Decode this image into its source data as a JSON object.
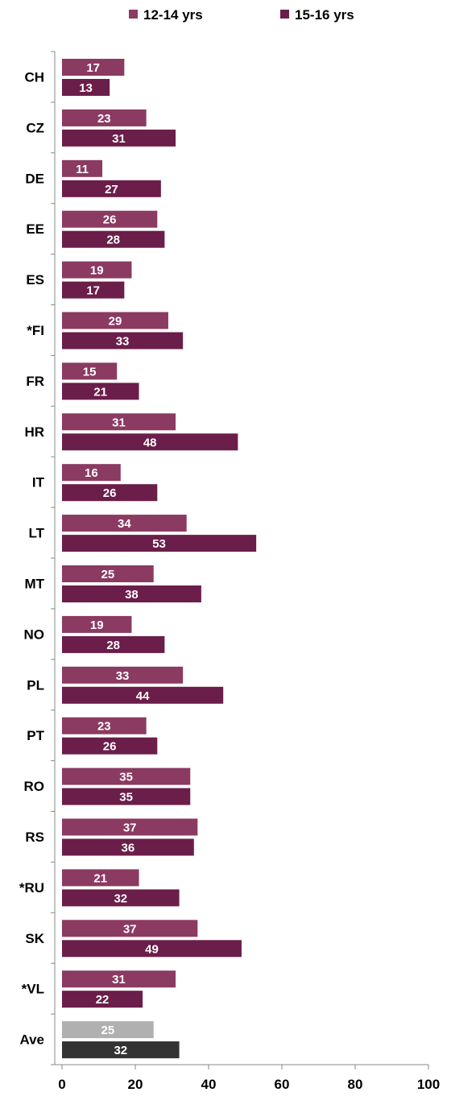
{
  "chart_data": {
    "type": "bar",
    "orientation": "horizontal",
    "title": "",
    "xlabel": "",
    "ylabel": "",
    "xlim": [
      0,
      100
    ],
    "x_ticks": [
      0,
      20,
      40,
      60,
      80,
      100
    ],
    "grid": false,
    "legend_position": "top",
    "categories": [
      "CH",
      "CZ",
      "DE",
      "EE",
      "ES",
      "*FI",
      "FR",
      "HR",
      "IT",
      "LT",
      "MT",
      "NO",
      "PL",
      "PT",
      "RO",
      "RS",
      "*RU",
      "SK",
      "*VL",
      "Ave"
    ],
    "series": [
      {
        "name": "12-14 yrs",
        "color": "#8B3A62",
        "values": [
          17,
          23,
          11,
          26,
          19,
          29,
          15,
          31,
          16,
          34,
          25,
          19,
          33,
          23,
          35,
          37,
          21,
          37,
          31,
          25
        ]
      },
      {
        "name": "15-16 yrs",
        "color": "#6B1E4A",
        "values": [
          13,
          31,
          27,
          28,
          17,
          33,
          21,
          48,
          26,
          53,
          38,
          28,
          44,
          26,
          35,
          36,
          32,
          49,
          22,
          32
        ]
      }
    ],
    "average_bar_colors": [
      "#B0B0B0",
      "#333333"
    ]
  }
}
